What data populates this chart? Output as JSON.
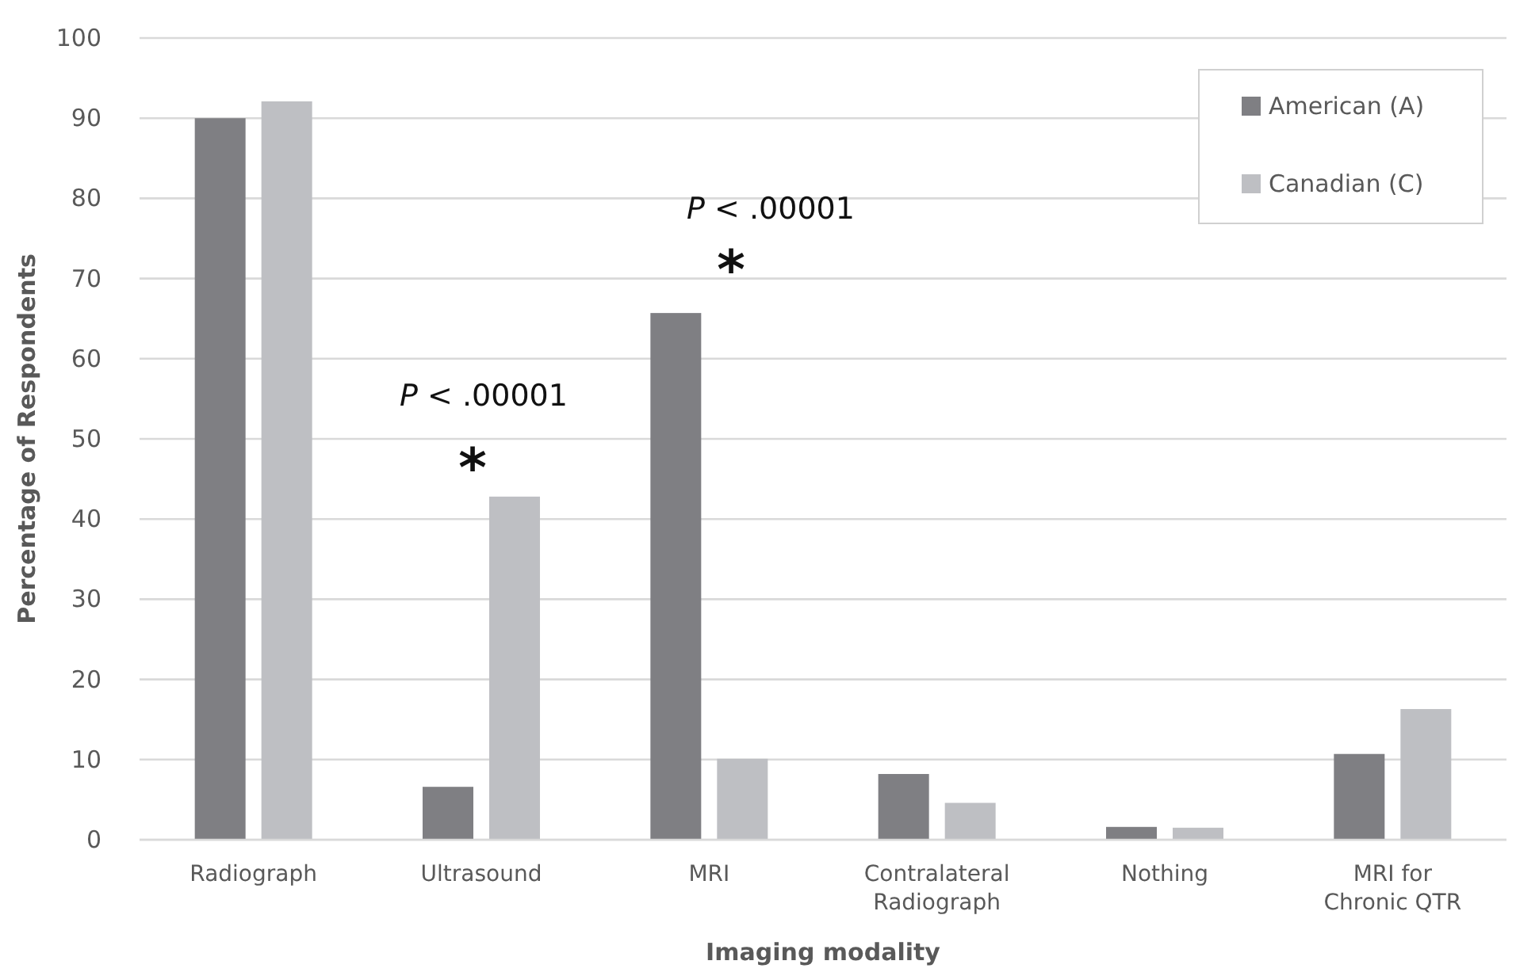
{
  "chart_data": {
    "type": "bar",
    "xlabel": "Imaging modality",
    "ylabel": "Percentage of Respondents",
    "categories": [
      "Radiograph",
      "Ultrasound",
      "MRI",
      "Contralateral Radiograph",
      "Nothing",
      "MRI for Chronic QTR"
    ],
    "series": [
      {
        "name": "American (A)",
        "color": "#7f7f83",
        "values": [
          90,
          6.6,
          65.7,
          8.2,
          1.6,
          10.7
        ]
      },
      {
        "name": "Canadian (C)",
        "color": "#bebfc3",
        "values": [
          92.1,
          42.8,
          10.1,
          4.6,
          1.5,
          16.3
        ]
      }
    ],
    "ylim": [
      0,
      100
    ],
    "yticks": [
      0,
      10,
      20,
      30,
      40,
      50,
      60,
      70,
      80,
      90,
      100
    ],
    "grid": "y",
    "legend": "top right",
    "annotations": [
      "P < .00001",
      "*",
      "P < .00001",
      "*"
    ]
  }
}
